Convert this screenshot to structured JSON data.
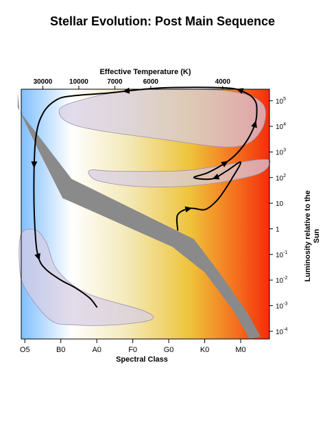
{
  "title": "Stellar Evolution: Post Main Sequence",
  "chart_data": {
    "type": "scatter",
    "title": "Stellar Evolution: Post Main Sequence",
    "top_axis": {
      "label": "Effective Temperature (K)",
      "ticks": [
        {
          "label": "30000",
          "class_position": 0.5
        },
        {
          "label": "10000",
          "class_position": 1.5
        },
        {
          "label": "7000",
          "class_position": 2.5
        },
        {
          "label": "6000",
          "class_position": 3.5
        },
        {
          "label": "4000",
          "class_position": 5.5
        }
      ]
    },
    "x_axis": {
      "label": "Spectral Class",
      "ticks": [
        "O5",
        "B0",
        "A0",
        "F0",
        "G0",
        "K0",
        "M0"
      ],
      "range": [
        -0.1,
        6.8
      ]
    },
    "y_axis": {
      "label": "Luminosity relative to the Sun",
      "scale": "log",
      "ticks": [
        {
          "base": "10",
          "exp": "5",
          "value": 100000
        },
        {
          "base": "10",
          "exp": "4",
          "value": 10000
        },
        {
          "base": "10",
          "exp": "3",
          "value": 1000
        },
        {
          "base": "10",
          "exp": "2",
          "value": 100
        },
        {
          "base": "10",
          "exp": "",
          "value": 10
        },
        {
          "base": "1",
          "exp": "",
          "value": 1
        },
        {
          "base": "10",
          "exp": "-1",
          "value": 0.1
        },
        {
          "base": "10",
          "exp": "-2",
          "value": 0.01
        },
        {
          "base": "10",
          "exp": "-3",
          "value": 0.001
        },
        {
          "base": "10",
          "exp": "-4",
          "value": 0.0001
        }
      ],
      "range_log10": [
        -4.3,
        5.45
      ]
    },
    "background_gradient": [
      "#7fbfff",
      "#ffffff",
      "#f3e8b4",
      "#efc33a",
      "#f4721f",
      "#f42d0b"
    ],
    "regions": {
      "main_sequence_band": {
        "color": "#8a8a8a",
        "upper_edge": [
          [
            -0.2,
            5.3
          ],
          [
            -0.15,
            4.6
          ],
          [
            0.45,
            3.5
          ],
          [
            1.3,
            1.95
          ],
          [
            4.7,
            -0.4
          ],
          [
            5.4,
            -1.7
          ],
          [
            6.2,
            -3.3
          ],
          [
            6.55,
            -4.2
          ]
        ],
        "lower_edge": [
          [
            6.25,
            -4.3
          ],
          [
            5.8,
            -3.2
          ],
          [
            5.0,
            -1.7
          ],
          [
            4.1,
            -0.7
          ],
          [
            1.05,
            1.2
          ],
          [
            0.35,
            3.15
          ],
          [
            -0.2,
            4.75
          ]
        ]
      },
      "supergiant_region": {
        "color": "#d7cde3",
        "outline": [
          [
            1.5,
            5.0
          ],
          [
            3.0,
            5.4
          ],
          [
            5.5,
            5.4
          ],
          [
            6.6,
            4.9
          ],
          [
            6.55,
            3.8
          ],
          [
            5.8,
            3.2
          ],
          [
            3.8,
            3.5
          ],
          [
            1.5,
            4.0
          ],
          [
            0.95,
            4.6
          ]
        ]
      },
      "giant_region": {
        "color": "#d7cde3",
        "outline": [
          [
            1.85,
            2.3
          ],
          [
            2.5,
            2.25
          ],
          [
            4.5,
            2.28
          ],
          [
            6.5,
            2.7
          ],
          [
            6.8,
            2.55
          ],
          [
            6.4,
            2.1
          ],
          [
            4.8,
            1.7
          ],
          [
            3.2,
            1.65
          ],
          [
            2.1,
            1.85
          ],
          [
            1.8,
            2.1
          ]
        ]
      },
      "white_dwarf_region": {
        "color": "#d7cde3",
        "outline": [
          [
            -0.1,
            -0.2
          ],
          [
            0.3,
            -0.05
          ],
          [
            0.6,
            -0.55
          ],
          [
            0.9,
            -1.6
          ],
          [
            1.7,
            -2.5
          ],
          [
            3.3,
            -3.2
          ],
          [
            3.5,
            -3.55
          ],
          [
            2.5,
            -3.75
          ],
          [
            1.4,
            -3.75
          ],
          [
            0.7,
            -3.55
          ],
          [
            0.0,
            -2.3
          ],
          [
            -0.15,
            -1.4
          ]
        ]
      }
    },
    "evolution_tracks": [
      {
        "points": [
          [
            4.25,
            -0.05
          ],
          [
            4.25,
            0.55
          ],
          [
            4.6,
            0.8
          ],
          [
            5.0,
            0.75
          ],
          [
            5.3,
            1.05
          ],
          [
            5.5,
            1.4
          ],
          [
            5.75,
            1.95
          ],
          [
            6.0,
            2.6
          ],
          [
            5.6,
            2.25
          ],
          [
            5.2,
            1.95
          ],
          [
            4.7,
            2.0
          ],
          [
            5.1,
            2.2
          ],
          [
            5.6,
            2.6
          ],
          [
            5.9,
            2.95
          ],
          [
            6.2,
            3.5
          ],
          [
            6.4,
            4.1
          ],
          [
            6.45,
            4.6
          ],
          [
            6.4,
            5.0
          ],
          [
            6.15,
            5.3
          ],
          [
            5.6,
            5.5
          ],
          [
            3.8,
            5.5
          ],
          [
            2.3,
            5.3
          ],
          [
            1.4,
            5.2
          ],
          [
            0.9,
            5.05
          ],
          [
            0.5,
            4.5
          ],
          [
            0.3,
            3.5
          ],
          [
            0.25,
            1.5
          ],
          [
            0.3,
            -0.4
          ],
          [
            0.4,
            -1.2
          ],
          [
            0.6,
            -1.6
          ],
          [
            1.0,
            -2.0
          ],
          [
            1.4,
            -2.3
          ],
          [
            1.8,
            -2.7
          ],
          [
            2.0,
            -3.05
          ]
        ],
        "arrow_positions": [
          0.04,
          0.19,
          0.27,
          0.34,
          0.4,
          0.56,
          0.76,
          0.89
        ]
      }
    ]
  }
}
